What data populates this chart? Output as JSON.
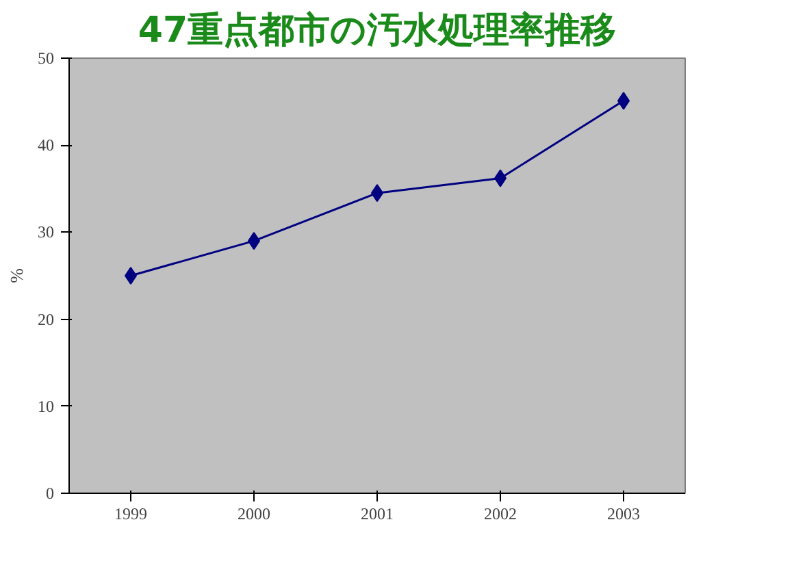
{
  "chart_data": {
    "type": "line",
    "title": "47重点都市の汚水処理率推移",
    "ylabel": "%",
    "categories": [
      "1999",
      "2000",
      "2001",
      "2002",
      "2003"
    ],
    "series": [
      {
        "color": "#000080",
        "values": [
          25,
          29,
          34.5,
          36.2,
          45.1
        ]
      }
    ],
    "ylim": [
      0,
      50
    ],
    "yticks": [
      0,
      10,
      20,
      30,
      40,
      50
    ],
    "marker": "diamond",
    "line_style": "solid"
  }
}
